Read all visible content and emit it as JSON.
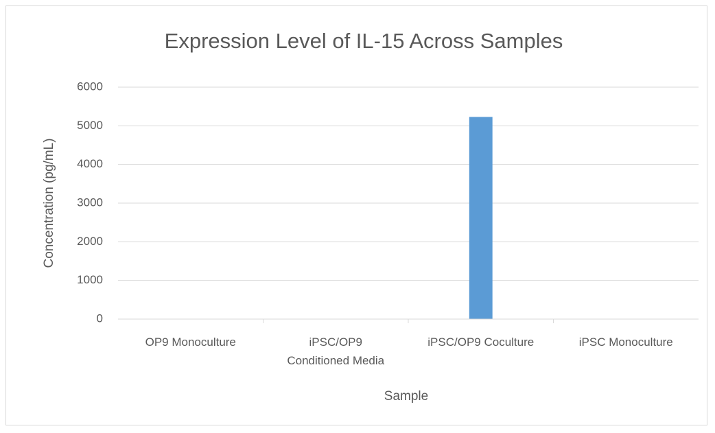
{
  "chart_data": {
    "type": "bar",
    "title": "Expression Level of IL-15 Across Samples",
    "x_label": "Sample",
    "y_label": "Concentration (pg/mL)",
    "categories": [
      "OP9 Monoculture",
      "iPSC/OP9 Conditioned Media",
      "iPSC/OP9 Coculture",
      "iPSC Monoculture"
    ],
    "values": [
      0,
      0,
      5230,
      0
    ],
    "color": "#5b9bd5",
    "ylim": [
      0,
      6000
    ],
    "yticks": [
      0,
      1000,
      2000,
      3000,
      4000,
      5000,
      6000
    ],
    "grid": true
  }
}
